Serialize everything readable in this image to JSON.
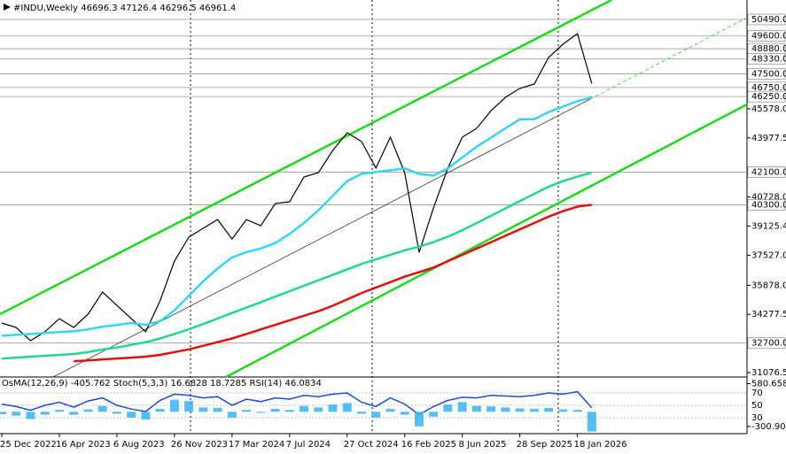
{
  "chart_data": [
    {
      "type": "line",
      "title": "#INDU,Weekly  46696.3 47126.4 46296.5 46961.4",
      "categories": [
        "25 Dec 2022",
        null,
        null,
        null,
        "16 Apr 2023",
        null,
        null,
        null,
        "6 Aug 2023",
        null,
        null,
        null,
        "26 Nov 2023",
        null,
        null,
        null,
        "17 Mar 2024",
        null,
        null,
        null,
        "7 Jul 2024",
        null,
        null,
        null,
        "27 Oct 2024",
        null,
        null,
        null,
        "16 Feb 2025",
        null,
        null,
        null,
        "8 Jun 2025",
        null,
        null,
        null,
        "28 Sep 2025",
        null,
        null,
        null,
        "18 Jan 2026",
        null
      ],
      "series": [
        {
          "color": "#000000",
          "values": [
            33800,
            33560,
            32830,
            33320,
            34040,
            33560,
            34290,
            35500,
            34770,
            34040,
            33320,
            35020,
            37210,
            38520,
            39010,
            39490,
            38420,
            39490,
            39150,
            40370,
            40470,
            41830,
            42070,
            43290,
            44260,
            43780,
            42320,
            44020,
            42070,
            37690,
            40130,
            42320,
            44020,
            44500,
            45480,
            46210,
            46700,
            46940,
            48400,
            49130,
            49710,
            46961
          ]
        },
        {
          "color": "#33d6f0",
          "values": [
            33100,
            33150,
            33200,
            33250,
            33300,
            33350,
            33450,
            33600,
            33700,
            33800,
            33700,
            33900,
            34500,
            35300,
            36100,
            36800,
            37400,
            37700,
            37900,
            38200,
            38700,
            39300,
            40000,
            40800,
            41600,
            42000,
            42100,
            42200,
            42300,
            42000,
            41900,
            42300,
            42900,
            43500,
            44000,
            44500,
            45000,
            45000,
            45400,
            45700,
            46000,
            46200
          ]
        },
        {
          "color": "#22d88a",
          "values": [
            31850,
            31900,
            31950,
            32000,
            32050,
            32100,
            32200,
            32350,
            32450,
            32600,
            32750,
            32950,
            33200,
            33450,
            33750,
            34050,
            34350,
            34650,
            34950,
            35250,
            35550,
            35850,
            36150,
            36450,
            36750,
            37050,
            37300,
            37550,
            37800,
            38000,
            38250,
            38550,
            38900,
            39300,
            39700,
            40100,
            40500,
            40900,
            41300,
            41600,
            41850,
            42070
          ]
        },
        {
          "color": "#e01010",
          "values": [
            null,
            null,
            null,
            null,
            null,
            31700,
            31750,
            31800,
            31850,
            31900,
            31950,
            32050,
            32200,
            32350,
            32550,
            32750,
            32950,
            33200,
            33450,
            33700,
            33950,
            34200,
            34450,
            34750,
            35100,
            35450,
            35750,
            36050,
            36350,
            36600,
            36850,
            37200,
            37550,
            37900,
            38250,
            38600,
            38950,
            39300,
            39650,
            39950,
            40200,
            40300
          ]
        }
      ],
      "ylim": [
        30882,
        51560
      ],
      "yticks": [
        {
          "value": 45578,
          "label": "45578.0"
        },
        {
          "value": 43977.5,
          "label": "43977.5"
        },
        {
          "value": 40728,
          "label": "40728.0"
        },
        {
          "value": 39125.4,
          "label": "39125.4"
        },
        {
          "value": 37527,
          "label": "37527.0"
        },
        {
          "value": 35878,
          "label": "35878.0"
        },
        {
          "value": 34277.5,
          "label": "34277.5"
        },
        {
          "value": 31076.5,
          "label": "31076.5"
        }
      ],
      "levels": [
        {
          "value": 50490,
          "label": "50490.0"
        },
        {
          "value": 49600,
          "label": "49600.0"
        },
        {
          "value": 48880,
          "label": "48880.0"
        },
        {
          "value": 48330,
          "label": "48330.0"
        },
        {
          "value": 47500,
          "label": "47500.0"
        },
        {
          "value": 46750,
          "label": "46750.0"
        },
        {
          "value": 46250,
          "label": "46250.0"
        },
        {
          "value": 42100,
          "label": "42100.0"
        },
        {
          "value": 40300,
          "label": "40300.0"
        },
        {
          "value": 32700,
          "label": "32700.0"
        }
      ]
    },
    {
      "type": "indicator",
      "title": "OsMA(12,26,9) -405.762  Stoch(5,3,3) 16.6828 18.7285  RSI(14) 46.0834",
      "series": [
        {
          "color": "#1e4bd2",
          "values": [
            52,
            48,
            42,
            50,
            55,
            47,
            57,
            62,
            50,
            44,
            40,
            58,
            68,
            66,
            62,
            64,
            50,
            60,
            56,
            62,
            60,
            66,
            64,
            68,
            70,
            55,
            48,
            62,
            52,
            35,
            48,
            58,
            63,
            62,
            66,
            65,
            64,
            66,
            70,
            68,
            72,
            46.0834
          ]
        },
        {
          "color": "#35b4f0",
          "axis": "y2",
          "values": [
            -50,
            -80,
            -150,
            -60,
            40,
            -60,
            50,
            120,
            -40,
            -120,
            -160,
            60,
            250,
            220,
            90,
            80,
            -120,
            40,
            -20,
            60,
            40,
            120,
            90,
            150,
            180,
            -40,
            -120,
            60,
            -60,
            -300,
            -100,
            150,
            200,
            120,
            110,
            90,
            70,
            60,
            80,
            50,
            40,
            -405.762
          ]
        }
      ],
      "ylim": [
        4.3,
        92.9
      ],
      "yticks": [
        70,
        50,
        30
      ],
      "y2lim": [
        -450,
        680
      ],
      "y2ticks": [
        580.658,
        -300.904
      ]
    }
  ]
}
